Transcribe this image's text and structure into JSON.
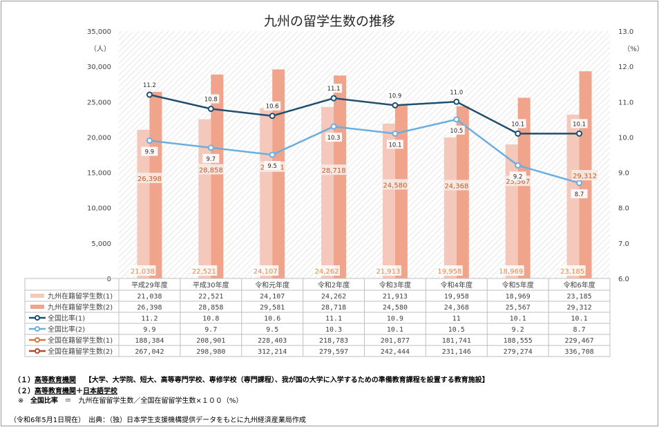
{
  "chart_data": {
    "type": "bar",
    "title": "九州の留学生数の推移",
    "categories": [
      "平成29年度",
      "平成30年度",
      "令和元年度",
      "令和2年度",
      "令和3年度",
      "令和4年度",
      "令和5年度",
      "令和6年度"
    ],
    "y_left": {
      "unit": "（人）",
      "ylim": [
        0,
        35000
      ],
      "ticks": [
        "0",
        "5,000",
        "10,000",
        "15,000",
        "20,000",
        "25,000",
        "30,000",
        "35,000"
      ]
    },
    "y_right": {
      "unit": "（%）",
      "ylim": [
        6.0,
        13.0
      ],
      "ticks": [
        "6.0",
        "7.0",
        "8.0",
        "9.0",
        "10.0",
        "11.0",
        "12.0",
        "13.0"
      ]
    },
    "series": [
      {
        "name": "九州在籍留学生数(1)",
        "kind": "bar",
        "color": "#f4c9bc",
        "values": [
          21038,
          22521,
          24107,
          24262,
          21913,
          19958,
          18969,
          23185
        ],
        "labels": [
          "21,038",
          "22,521",
          "24,107",
          "24,262",
          "21,913",
          "19,958",
          "18,969",
          "23,185"
        ],
        "table": [
          "21,038",
          "22,521",
          "24,107",
          "24,262",
          "21,913",
          "19,958",
          "18,969",
          "23,185"
        ]
      },
      {
        "name": "九州在籍留学生数(2)",
        "kind": "bar",
        "color": "#f0a48c",
        "values": [
          26398,
          28858,
          29581,
          28718,
          24580,
          24368,
          25567,
          29312
        ],
        "labels": [
          "26,398",
          "28,858",
          "29,581",
          "28,718",
          "24,580",
          "24,368",
          "25,567",
          "29,312"
        ],
        "table": [
          "26,398",
          "28,858",
          "29,581",
          "28,718",
          "24,580",
          "24,368",
          "25,567",
          "29,312"
        ]
      },
      {
        "name": "全国比率(1)",
        "kind": "line",
        "color": "#1f4e6e",
        "values": [
          11.2,
          10.8,
          10.6,
          11.1,
          10.9,
          11.0,
          10.1,
          10.1
        ],
        "labels": [
          "11.2",
          "10.8",
          "10.6",
          "11.1",
          "10.9",
          "11.0",
          "10.1",
          "10.1"
        ],
        "table": [
          "11.2",
          "10.8",
          "10.6",
          "11.1",
          "10.9",
          "11",
          "10.1",
          "10.1"
        ]
      },
      {
        "name": "全国比率(2)",
        "kind": "line",
        "color": "#6aaee0",
        "values": [
          9.9,
          9.7,
          9.5,
          10.3,
          10.1,
          10.5,
          9.2,
          8.7
        ],
        "labels": [
          "9.9",
          "9.7",
          "9.5",
          "10.3",
          "10.1",
          "10.5",
          "9.2",
          "8.7"
        ],
        "table": [
          "9.9",
          "9.7",
          "9.5",
          "10.3",
          "10.1",
          "10.5",
          "9.2",
          "8.7"
        ]
      },
      {
        "name": "全国在籍留学生数(1)",
        "kind": "table",
        "color": "#d9743a",
        "values": [
          188384,
          208901,
          228403,
          218783,
          201877,
          181741,
          188555,
          229467
        ],
        "table": [
          "188,384",
          "208,901",
          "228,403",
          "218,783",
          "201,877",
          "181,741",
          "188,555",
          "229,467"
        ]
      },
      {
        "name": "全国在籍留学生数(2)",
        "kind": "table",
        "color": "#b24a2a",
        "values": [
          267042,
          298980,
          312214,
          279597,
          242444,
          231146,
          279274,
          336708
        ],
        "table": [
          "267,042",
          "298,980",
          "312,214",
          "279,597",
          "242,444",
          "231,146",
          "279,274",
          "336,708"
        ]
      }
    ],
    "grid": false,
    "legend": "table-left"
  },
  "notes": {
    "n1_prefix": "（１）",
    "n1_term": "高等教育機関",
    "n1_desc": "【大学、大学院、短大、高等専門学校、専修学校（専門課程）、我が国の大学に入学するための準備教育課程を設置する教育施設】",
    "n2_prefix": "（２）",
    "n2_term_a": "高等教育機関",
    "n2_plus": "＋",
    "n2_term_b": "日本語学校",
    "n3_prefix": "※",
    "n3_term": "全国比率",
    "n3_desc": "＝　九州在留留学生数／全国在留留学生数×１００（%）",
    "source": "（令和6年5月1日現在）　出典：（独）日本学生支援機構提供データをもとに九州経済産業局作成"
  }
}
